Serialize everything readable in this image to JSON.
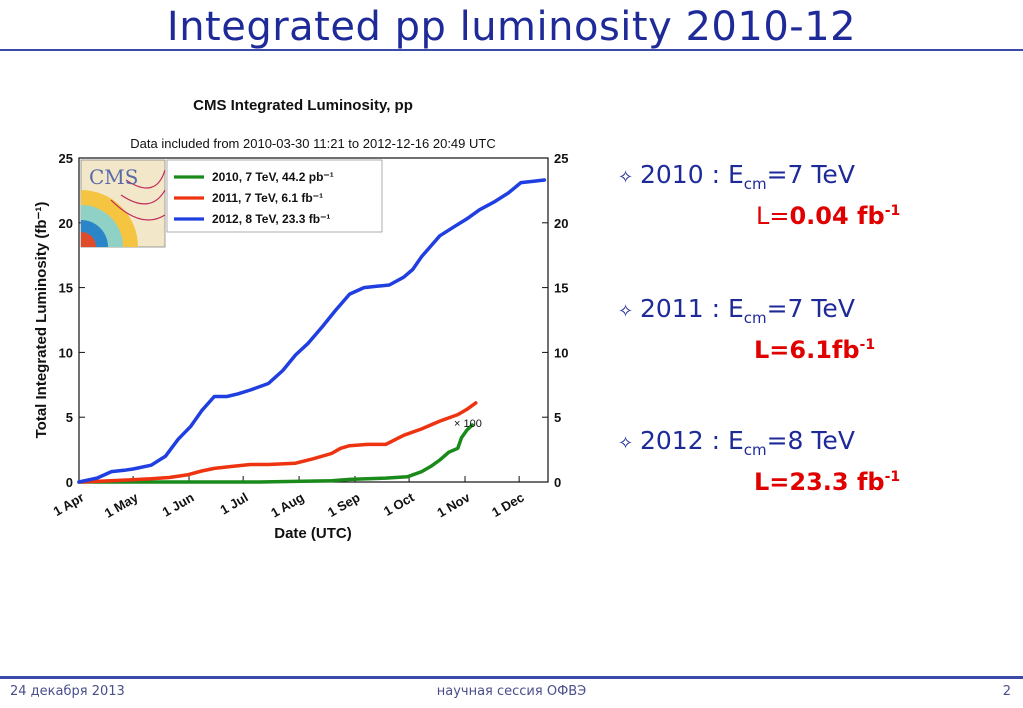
{
  "slide": {
    "title": "Integrated pp luminosity  2010-12",
    "footer_left": "24 декабря 2013",
    "footer_center": "научная сессия ОФВЭ",
    "footer_right": "2"
  },
  "bullets": [
    {
      "year": "2010 :",
      "e": "E",
      "sub": "cm",
      "energy": "=7 TeV",
      "lum_prefix": "L=",
      "lum_value": "0.04 fb",
      "lum_sup": "-1"
    },
    {
      "year": "2011 :",
      "e": "E",
      "sub": "cm",
      "energy": "=7 TeV",
      "lum_prefix": "",
      "lum_value": "L=6.1fb",
      "lum_sup": "-1"
    },
    {
      "year": "2012 :",
      "e": "E",
      "sub": "cm",
      "energy": "=8 TeV",
      "lum_prefix": "",
      "lum_value": "L=23.3 fb",
      "lum_sup": "-1"
    }
  ],
  "colors": {
    "title": "#1f2a99",
    "red": "#e00000",
    "green": "#1a8a1a",
    "red_series": "#ee3311",
    "blue": "#1f3fe0"
  },
  "chart_data": {
    "type": "line",
    "title": "CMS Integrated Luminosity, pp",
    "subtitle": "Data included from 2010-03-30 11:21 to 2012-12-16 20:49 UTC",
    "xlabel": "Date (UTC)",
    "ylabel": "Total Integrated Luminosity (fb⁻¹)",
    "xlim": [
      0,
      260
    ],
    "ylim": [
      0,
      25
    ],
    "yticks": [
      0,
      5,
      10,
      15,
      20,
      25
    ],
    "xticks": [
      {
        "label": "1 Apr",
        "day": 0
      },
      {
        "label": "1 May",
        "day": 30
      },
      {
        "label": "1 Jun",
        "day": 61
      },
      {
        "label": "1 Jul",
        "day": 91
      },
      {
        "label": "1 Aug",
        "day": 122
      },
      {
        "label": "1 Sep",
        "day": 153
      },
      {
        "label": "1 Oct",
        "day": 183
      },
      {
        "label": "1 Nov",
        "day": 214
      },
      {
        "label": "1 Dec",
        "day": 244
      }
    ],
    "annotation": "× 100",
    "legend_position": "top-left",
    "series": [
      {
        "name": "2010, 7 TeV, 44.2 pb⁻¹",
        "color": "#1a8a1a",
        "x": [
          0,
          30,
          60,
          100,
          140,
          150,
          170,
          182,
          190,
          195,
          200,
          205,
          210,
          212,
          215,
          218
        ],
        "y": [
          0,
          0,
          0,
          0,
          0.1,
          0.2,
          0.3,
          0.4,
          0.8,
          1.2,
          1.7,
          2.3,
          2.6,
          3.4,
          4.0,
          4.4
        ]
      },
      {
        "name": "2011, 7 TeV, 6.1 fb⁻¹",
        "color": "#ee3311",
        "x": [
          0,
          10,
          25,
          40,
          50,
          60,
          68,
          75,
          85,
          95,
          105,
          120,
          130,
          140,
          145,
          150,
          160,
          170,
          180,
          190,
          200,
          210,
          215,
          220
        ],
        "y": [
          0,
          0.05,
          0.15,
          0.25,
          0.35,
          0.55,
          0.85,
          1.05,
          1.2,
          1.35,
          1.35,
          1.45,
          1.8,
          2.2,
          2.6,
          2.8,
          2.9,
          2.9,
          3.6,
          4.1,
          4.7,
          5.2,
          5.6,
          6.1
        ]
      },
      {
        "name": "2012, 8 TeV, 23.3 fb⁻¹",
        "color": "#1f3fe0",
        "x": [
          0,
          10,
          18,
          25,
          30,
          40,
          48,
          55,
          62,
          68,
          75,
          82,
          88,
          95,
          105,
          113,
          120,
          127,
          135,
          142,
          150,
          158,
          165,
          172,
          180,
          185,
          190,
          195,
          200,
          208,
          215,
          222,
          230,
          238,
          245,
          252,
          258
        ],
        "y": [
          0,
          0.3,
          0.8,
          0.9,
          1.0,
          1.3,
          2.0,
          3.3,
          4.3,
          5.5,
          6.6,
          6.6,
          6.8,
          7.1,
          7.6,
          8.6,
          9.8,
          10.7,
          12.0,
          13.2,
          14.5,
          15.0,
          15.1,
          15.2,
          15.8,
          16.4,
          17.4,
          18.2,
          19.0,
          19.7,
          20.3,
          21.0,
          21.6,
          22.3,
          23.1,
          23.2,
          23.3
        ]
      }
    ]
  }
}
